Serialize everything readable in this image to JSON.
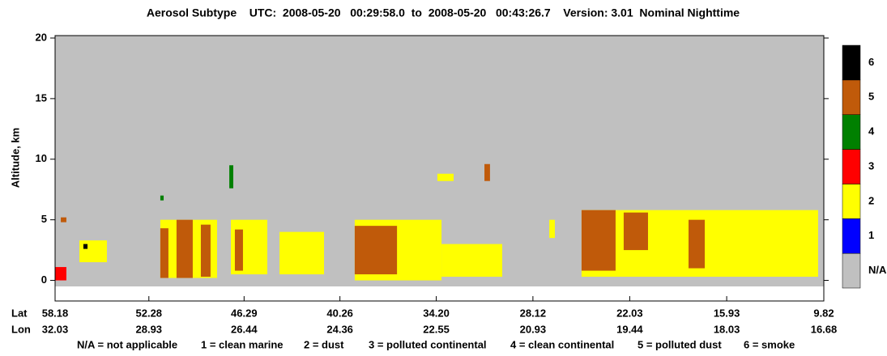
{
  "chart_data": {
    "type": "heatmap",
    "title": "Aerosol Subtype    UTC:  2008-05-20   00:29:58.0  to  2008-05-20   00:43:26.7    Version: 3.01  Nominal Nighttime",
    "y_label": "Altitude, km",
    "ylim": [
      -1.7,
      20.2
    ],
    "yticks": [
      0,
      5,
      10,
      15,
      20
    ],
    "xlim": [
      58.18,
      9.82
    ],
    "x_row_labels": [
      "Lat",
      "Lon"
    ],
    "xticks": [
      58.18,
      52.28,
      46.29,
      40.26,
      34.2,
      28.12,
      22.03,
      15.93,
      9.82
    ],
    "xtick_labels": [
      "58.18",
      "52.28",
      "46.29",
      "40.26",
      "34.20",
      "28.12",
      "22.03",
      "15.93",
      "9.82"
    ],
    "lon_ticks": [
      "32.03",
      "28.93",
      "26.44",
      "24.36",
      "22.55",
      "20.93",
      "19.44",
      "18.03",
      "16.68"
    ],
    "classes": [
      {
        "code": "N/A",
        "color": "#c0c0c0"
      },
      {
        "code": 1,
        "color": "#0000ff"
      },
      {
        "code": 2,
        "color": "#ffff00"
      },
      {
        "code": 3,
        "color": "#ff0000"
      },
      {
        "code": 4,
        "color": "#008000"
      },
      {
        "code": 5,
        "color": "#c05a0a"
      },
      {
        "code": 6,
        "color": "#000000"
      }
    ],
    "legend_text": [
      "N/A = not applicable",
      "1 = clean marine",
      "2 = dust",
      "3 = polluted continental",
      "4 = clean continental",
      "5 = polluted dust",
      "6 = smoke"
    ],
    "regions": [
      {
        "lat0": 58.18,
        "lat1": 9.82,
        "alt0": -0.5,
        "alt1": 20.2,
        "subtype": "N/A"
      },
      {
        "lat0": 58.18,
        "lat1": 57.47,
        "alt0": 0,
        "alt1": 1.1,
        "subtype": 3
      },
      {
        "lat0": 57.82,
        "lat1": 57.47,
        "alt0": 4.8,
        "alt1": 5.2,
        "subtype": 5
      },
      {
        "lat0": 56.65,
        "lat1": 54.92,
        "alt0": 1.5,
        "alt1": 3.3,
        "subtype": 2
      },
      {
        "lat0": 56.4,
        "lat1": 56.14,
        "alt0": 2.6,
        "alt1": 3.0,
        "subtype": 6
      },
      {
        "lat0": 51.56,
        "lat1": 47.99,
        "alt0": 0.2,
        "alt1": 5.0,
        "subtype": 2
      },
      {
        "lat0": 51.56,
        "lat1": 51.05,
        "alt0": 0.2,
        "alt1": 4.3,
        "subtype": 5
      },
      {
        "lat0": 50.54,
        "lat1": 49.52,
        "alt0": 0.2,
        "alt1": 5.0,
        "subtype": 5
      },
      {
        "lat0": 49.01,
        "lat1": 48.4,
        "alt0": 0.3,
        "alt1": 4.6,
        "subtype": 5
      },
      {
        "lat0": 51.56,
        "lat1": 51.35,
        "alt0": 6.6,
        "alt1": 7.0,
        "subtype": 4
      },
      {
        "lat0": 47.22,
        "lat1": 46.97,
        "alt0": 7.6,
        "alt1": 9.5,
        "subtype": 4
      },
      {
        "lat0": 47.12,
        "lat1": 44.83,
        "alt0": 0.5,
        "alt1": 5.0,
        "subtype": 2
      },
      {
        "lat0": 46.87,
        "lat1": 46.36,
        "alt0": 0.8,
        "alt1": 4.2,
        "subtype": 5
      },
      {
        "lat0": 44.06,
        "lat1": 41.26,
        "alt0": 0.5,
        "alt1": 4.0,
        "subtype": 2
      },
      {
        "lat0": 39.33,
        "lat1": 33.87,
        "alt0": 0,
        "alt1": 5.0,
        "subtype": 2
      },
      {
        "lat0": 39.33,
        "lat1": 36.67,
        "alt0": 0.5,
        "alt1": 4.5,
        "subtype": 5
      },
      {
        "lat0": 33.87,
        "lat1": 30.05,
        "alt0": 0.3,
        "alt1": 3.0,
        "subtype": 2
      },
      {
        "lat0": 34.13,
        "lat1": 33.11,
        "alt0": 8.2,
        "alt1": 8.8,
        "subtype": 2
      },
      {
        "lat0": 31.17,
        "lat1": 30.82,
        "alt0": 8.2,
        "alt1": 9.6,
        "subtype": 5
      },
      {
        "lat0": 27.09,
        "lat1": 26.74,
        "alt0": 3.5,
        "alt1": 5.0,
        "subtype": 2
      },
      {
        "lat0": 25.06,
        "lat1": 10.18,
        "alt0": 0.3,
        "alt1": 5.8,
        "subtype": 2
      },
      {
        "lat0": 25.06,
        "lat1": 22.92,
        "alt0": 0.8,
        "alt1": 5.8,
        "subtype": 5
      },
      {
        "lat0": 22.41,
        "lat1": 20.88,
        "alt0": 2.5,
        "alt1": 5.6,
        "subtype": 5
      },
      {
        "lat0": 18.33,
        "lat1": 17.31,
        "alt0": 1.0,
        "alt1": 5.0,
        "subtype": 5
      }
    ]
  }
}
